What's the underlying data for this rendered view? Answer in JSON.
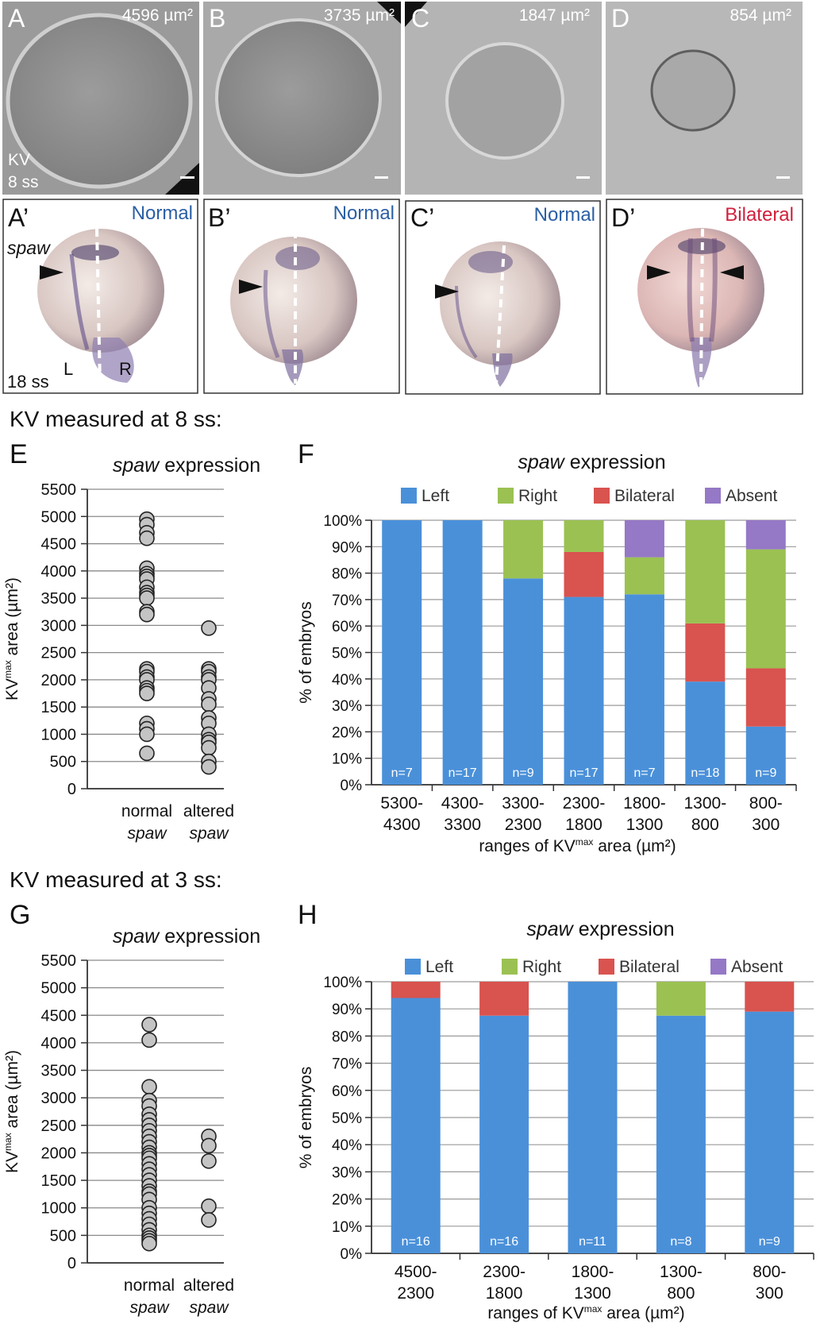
{
  "panels_top": [
    {
      "letter": "A",
      "area": "4596 µm²",
      "extra1": "KV",
      "extra2": "8 ss"
    },
    {
      "letter": "B",
      "area": "3735 µm²"
    },
    {
      "letter": "C",
      "area": "1847 µm²"
    },
    {
      "letter": "D",
      "area": "854 µm²"
    }
  ],
  "panels_bottom": [
    {
      "letter": "A’",
      "status": "Normal",
      "status_color": "#2b5fa5",
      "gene": "spaw",
      "stage": "18 ss",
      "left": "L",
      "right": "R"
    },
    {
      "letter": "B’",
      "status": "Normal",
      "status_color": "#2b5fa5"
    },
    {
      "letter": "C’",
      "status": "Normal",
      "status_color": "#2b5fa5"
    },
    {
      "letter": "D’",
      "status": "Bilateral",
      "status_color": "#d01f3c"
    }
  ],
  "section1_title": "KV measured at 8 ss:",
  "section2_title": "KV measured at 3 ss:",
  "colors": {
    "Left": "#4a90d9",
    "Right": "#9bc152",
    "Bilateral": "#d9534f",
    "Absent": "#9578c6",
    "dot": "#c4c4c4"
  },
  "chart_data": [
    {
      "panel": "E",
      "type": "scatter",
      "title_italic": "spaw",
      "title_rest": " expression",
      "ylabel_main": "KV",
      "ylabel_sup": "max",
      "ylabel_rest": " area (µm²)",
      "ylim": [
        0,
        5500
      ],
      "yticks": [
        "0",
        "500",
        "1000",
        "1500",
        "2000",
        "2500",
        "3000",
        "3500",
        "4000",
        "4500",
        "5000",
        "5500"
      ],
      "categories": [
        [
          "normal",
          "spaw"
        ],
        [
          "altered",
          "spaw"
        ]
      ],
      "series": [
        {
          "values": [
            4950,
            4850,
            4700,
            4600,
            4050,
            3950,
            3900,
            3850,
            3700,
            3600,
            3550,
            3500,
            3250,
            3200,
            2200,
            2150,
            2050,
            2000,
            1850,
            1800,
            1750,
            1200,
            1100,
            1000,
            650
          ]
        },
        {
          "values": [
            2950,
            2200,
            2150,
            2050,
            2000,
            1850,
            1650,
            1550,
            1300,
            1200,
            1000,
            900,
            850,
            750,
            500,
            400
          ]
        }
      ]
    },
    {
      "panel": "F",
      "type": "bar",
      "title_italic": "spaw",
      "title_rest": " expression",
      "legend": [
        "Left",
        "Right",
        "Bilateral",
        "Absent"
      ],
      "ylabel": "% of embryos",
      "xlabel_pre": "ranges of KV",
      "xlabel_sup": "max",
      "xlabel_post": " area (µm²)",
      "yticks": [
        "0%",
        "10%",
        "20%",
        "30%",
        "40%",
        "50%",
        "60%",
        "70%",
        "80%",
        "90%",
        "100%"
      ],
      "categories": [
        [
          "5300-",
          "4300"
        ],
        [
          "4300-",
          "3300"
        ],
        [
          "3300-",
          "2300"
        ],
        [
          "2300-",
          "1800"
        ],
        [
          "1800-",
          "1300"
        ],
        [
          "1300-",
          "800"
        ],
        [
          "800-",
          "300"
        ]
      ],
      "n": [
        "n=7",
        "n=17",
        "n=9",
        "n=17",
        "n=7",
        "n=18",
        "n=9"
      ],
      "series": [
        {
          "name": "Left",
          "values": [
            100,
            100,
            78,
            71,
            72,
            39,
            22
          ]
        },
        {
          "name": "Bilateral",
          "values": [
            0,
            0,
            0,
            17,
            0,
            22,
            22
          ]
        },
        {
          "name": "Right",
          "values": [
            0,
            0,
            22,
            12,
            14,
            39,
            45
          ]
        },
        {
          "name": "Absent",
          "values": [
            0,
            0,
            0,
            0,
            14,
            0,
            11
          ]
        }
      ]
    },
    {
      "panel": "G",
      "type": "scatter",
      "title_italic": "spaw",
      "title_rest": " expression",
      "ylabel_main": "KV",
      "ylabel_sup": "max",
      "ylabel_rest": " area (µm²)",
      "ylim": [
        0,
        5500
      ],
      "yticks": [
        "0",
        "500",
        "1000",
        "1500",
        "2000",
        "2500",
        "3000",
        "3500",
        "4000",
        "4500",
        "5000",
        "5500"
      ],
      "categories": [
        [
          "normal",
          "spaw"
        ],
        [
          "altered",
          "spaw"
        ]
      ],
      "series": [
        {
          "values": [
            4330,
            4050,
            3200,
            2950,
            2850,
            2700,
            2600,
            2500,
            2400,
            2300,
            2200,
            2100,
            2000,
            1950,
            1900,
            1800,
            1700,
            1600,
            1500,
            1400,
            1300,
            1250,
            1150,
            1000,
            900,
            800,
            700,
            600,
            500,
            450,
            400,
            350
          ]
        },
        {
          "values": [
            2300,
            2130,
            1850,
            1030,
            780
          ]
        }
      ]
    },
    {
      "panel": "H",
      "type": "bar",
      "title_italic": "spaw",
      "title_rest": " expression",
      "legend": [
        "Left",
        "Right",
        "Bilateral",
        "Absent"
      ],
      "ylabel": "% of embryos",
      "xlabel_pre": "ranges of KV",
      "xlabel_sup": "max",
      "xlabel_post": " area (µm²)",
      "yticks": [
        "0%",
        "10%",
        "20%",
        "30%",
        "40%",
        "50%",
        "60%",
        "70%",
        "80%",
        "90%",
        "100%"
      ],
      "categories": [
        [
          "4500-",
          "2300"
        ],
        [
          "2300-",
          "1800"
        ],
        [
          "1800-",
          "1300"
        ],
        [
          "1300-",
          "800"
        ],
        [
          "800-",
          "300"
        ]
      ],
      "n": [
        "n=16",
        "n=16",
        "n=11",
        "n=8",
        "n=9"
      ],
      "series": [
        {
          "name": "Left",
          "values": [
            94,
            87.5,
            100,
            87.5,
            89
          ]
        },
        {
          "name": "Bilateral",
          "values": [
            6,
            12.5,
            0,
            0,
            11
          ]
        },
        {
          "name": "Right",
          "values": [
            0,
            0,
            0,
            12.5,
            0
          ]
        },
        {
          "name": "Absent",
          "values": [
            0,
            0,
            0,
            0,
            0
          ]
        }
      ]
    }
  ]
}
